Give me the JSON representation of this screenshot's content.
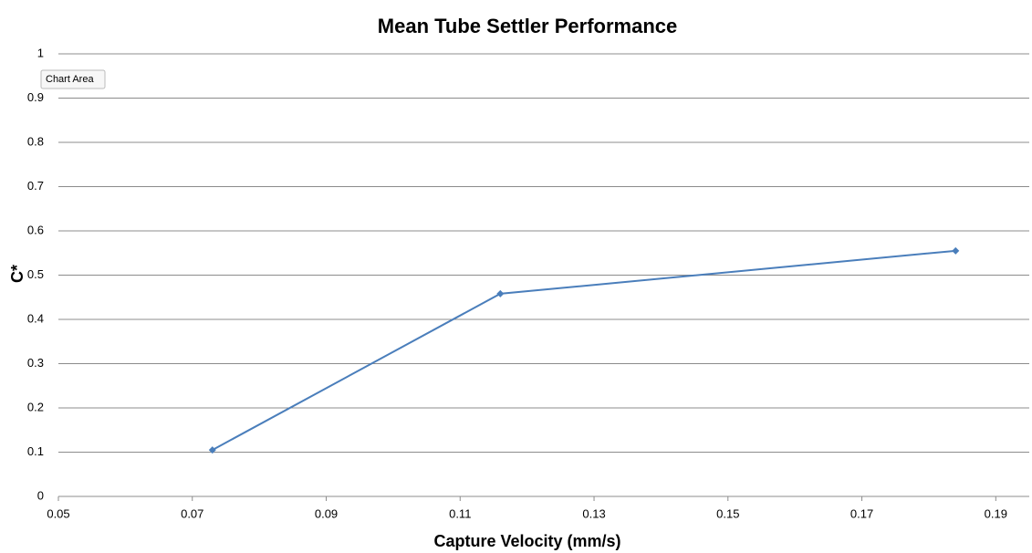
{
  "chart_data": {
    "type": "line",
    "title": "Mean Tube Settler Performance",
    "x_label": "Capture Velocity (mm/s)",
    "y_label": "C*",
    "tooltip": "Chart Area",
    "x": [
      0.073,
      0.116,
      0.184
    ],
    "series": [
      {
        "name": "C*",
        "color": "#4a7ebb",
        "values": [
          0.105,
          0.458,
          0.555
        ]
      }
    ],
    "xlim": [
      0.05,
      0.195
    ],
    "xticks": [
      0.05,
      0.07,
      0.09,
      0.11,
      0.13,
      0.15,
      0.17,
      0.19
    ],
    "ylim": [
      0,
      1
    ],
    "yticks": [
      0,
      0.1,
      0.2,
      0.3,
      0.4,
      0.5,
      0.6,
      0.7,
      0.8,
      0.9,
      1
    ],
    "grid": true
  }
}
